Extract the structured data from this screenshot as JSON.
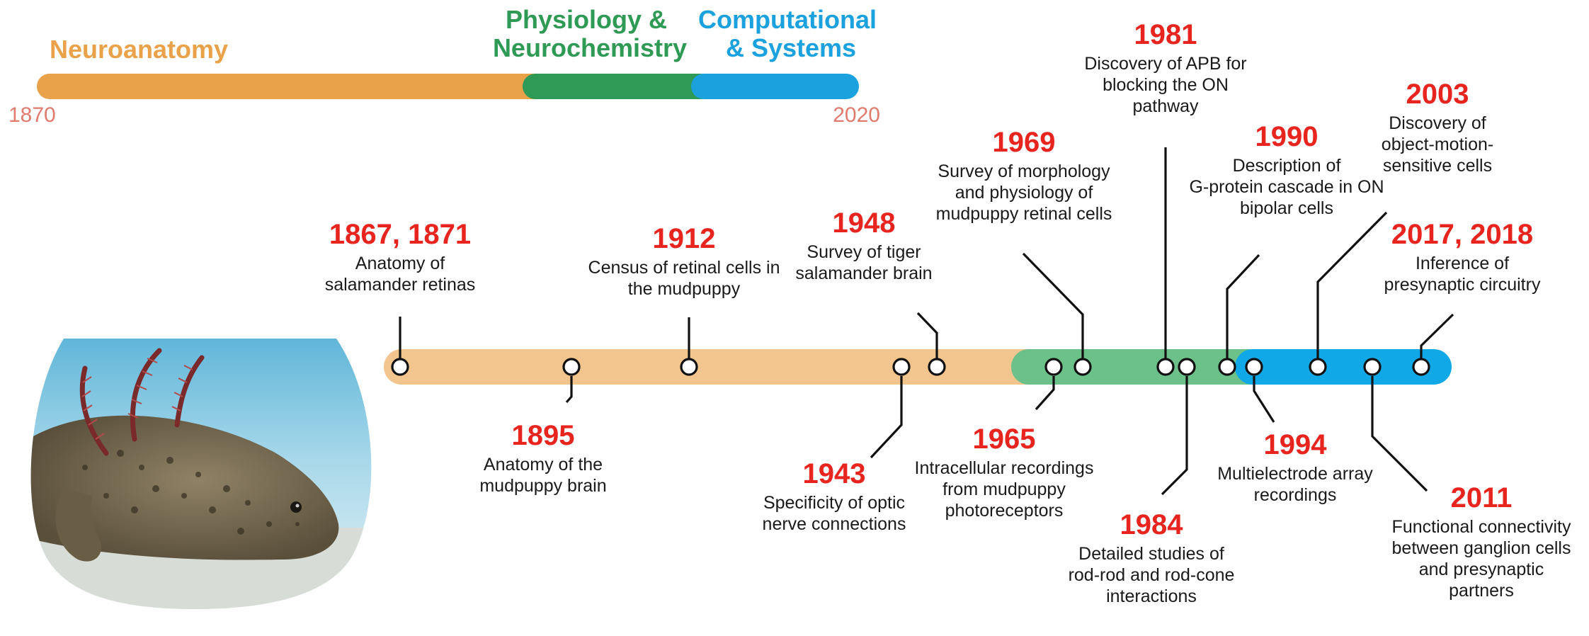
{
  "eras_bar": {
    "start_year": "1870",
    "end_year": "2020",
    "eras": [
      {
        "label_lines": [
          "Neuroanatomy"
        ],
        "color": "#e9a24a"
      },
      {
        "label_lines": [
          "Physiology &",
          "Neurochemistry"
        ],
        "color": "#2f9a55"
      },
      {
        "label_lines": [
          "Computational",
          "& Systems"
        ],
        "color": "#1ba1de"
      }
    ]
  },
  "timeline": {
    "segment_colors": [
      "#f2c48e",
      "#6cc08a",
      "#10a8e6"
    ],
    "events": [
      {
        "year": "1867, 1871",
        "desc": [
          "Anatomy of",
          "salamander retinas"
        ]
      },
      {
        "year": "1895",
        "desc": [
          "Anatomy of the",
          "mudpuppy brain"
        ]
      },
      {
        "year": "1912",
        "desc": [
          "Census of retinal cells in",
          "the mudpuppy"
        ]
      },
      {
        "year": "1943",
        "desc": [
          "Specificity of optic",
          "nerve connections"
        ]
      },
      {
        "year": "1948",
        "desc": [
          "Survey of tiger",
          "salamander brain"
        ]
      },
      {
        "year": "1965",
        "desc": [
          "Intracellular recordings",
          "from mudpuppy",
          "photoreceptors"
        ]
      },
      {
        "year": "1969",
        "desc": [
          "Survey of morphology",
          "and physiology of",
          "mudpuppy retinal cells"
        ]
      },
      {
        "year": "1981",
        "desc": [
          "Discovery of APB for",
          "blocking the ON",
          "pathway"
        ]
      },
      {
        "year": "1984",
        "desc": [
          "Detailed studies of",
          "rod-rod and rod-cone",
          "interactions"
        ]
      },
      {
        "year": "1990",
        "desc": [
          "Description of",
          "G-protein cascade in ON",
          "bipolar cells"
        ]
      },
      {
        "year": "1994",
        "desc": [
          "Multielectrode array",
          "recordings"
        ]
      },
      {
        "year": "2003",
        "desc": [
          "Discovery of",
          "object-motion-",
          "sensitive cells"
        ]
      },
      {
        "year": "2011",
        "desc": [
          "Functional connectivity",
          "between ganglion cells",
          "and presynaptic",
          "partners"
        ]
      },
      {
        "year": "2017, 2018",
        "desc": [
          "Inference of",
          "presynaptic circuitry"
        ]
      }
    ]
  },
  "photo": {
    "subject": "salamander"
  }
}
